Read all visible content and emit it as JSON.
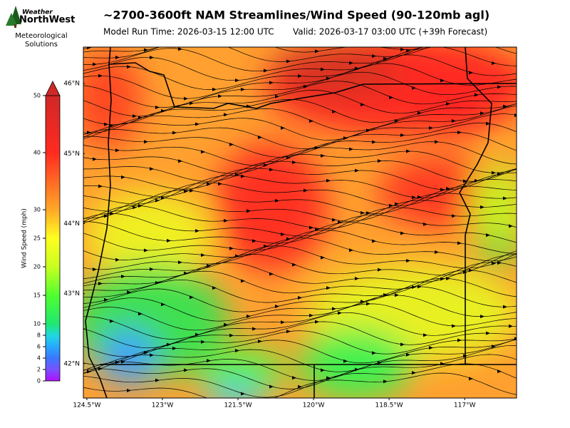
{
  "logo": {
    "top": "Weather",
    "brand": "NorthWest",
    "lines": [
      "Meteorological",
      "Solutions"
    ]
  },
  "header": {
    "title": "~2700-3600ft NAM Streamlines/Wind Speed (90-120mb agl)",
    "run": "Model Run Time: 2026-03-15 12:00 UTC",
    "valid": "Valid: 2026-03-17 03:00 UTC  (+39h Forecast)"
  },
  "colorbar": {
    "label": "Wind Speed (mph)",
    "lim": [
      0,
      50
    ],
    "ticks": [
      0,
      2,
      4,
      6,
      8,
      10,
      15,
      20,
      25,
      30,
      40,
      50
    ]
  },
  "map": {
    "latlim": [
      41.51,
      46.52
    ],
    "lonlim": [
      -124.57,
      -115.97
    ],
    "lat_ticks": [
      {
        "value": 46,
        "label": "46°N"
      },
      {
        "value": 45,
        "label": "45°N"
      },
      {
        "value": 44,
        "label": "44°N"
      },
      {
        "value": 43,
        "label": "43°N"
      },
      {
        "value": 42,
        "label": "42°N"
      }
    ],
    "lon_ticks": [
      {
        "value": -124.5,
        "label": "124.5°W"
      },
      {
        "value": -123,
        "label": "123°W"
      },
      {
        "value": -121.5,
        "label": "121.5°W"
      },
      {
        "value": -120,
        "label": "120°W"
      },
      {
        "value": -118.5,
        "label": "118.5°W"
      },
      {
        "value": -117,
        "label": "117°W"
      }
    ]
  }
}
